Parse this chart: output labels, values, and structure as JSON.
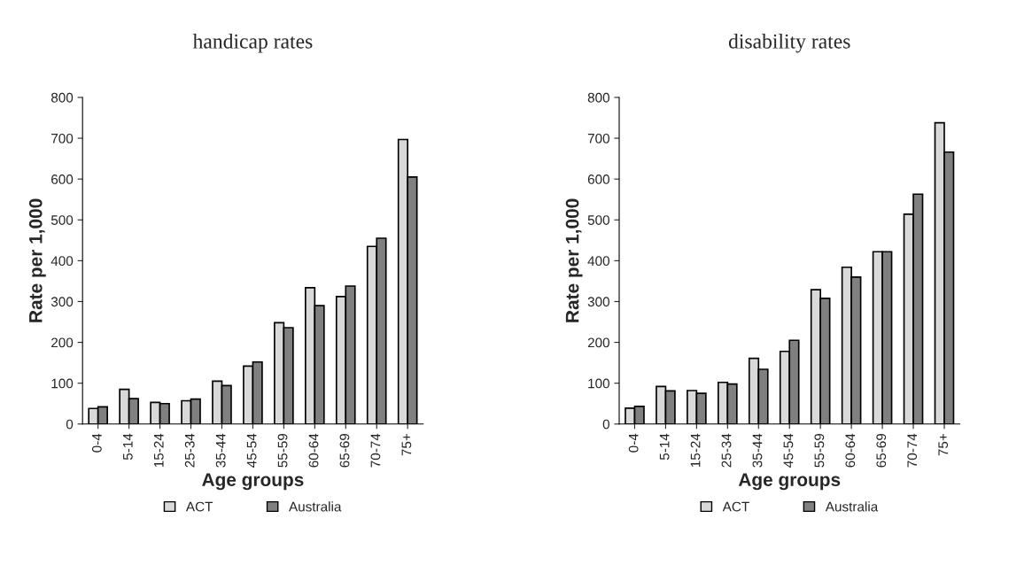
{
  "chart_data": [
    {
      "type": "bar",
      "title": "handicap rates",
      "xlabel": "Age groups",
      "ylabel": "Rate per 1,000",
      "categories": [
        "0-4",
        "5-14",
        "15-24",
        "25-34",
        "35-44",
        "45-54",
        "55-59",
        "60-64",
        "65-69",
        "70-74",
        "75+"
      ],
      "series": [
        {
          "name": "ACT",
          "color": "#d9d9d9",
          "values": [
            38,
            85,
            53,
            57,
            105,
            142,
            248,
            334,
            312,
            435,
            697
          ]
        },
        {
          "name": "Australia",
          "color": "#808080",
          "values": [
            42,
            62,
            50,
            61,
            94,
            152,
            236,
            290,
            338,
            455,
            605
          ]
        }
      ],
      "ylim": [
        0,
        800
      ],
      "yticks": [
        0,
        100,
        200,
        300,
        400,
        500,
        600,
        700,
        800
      ],
      "grid": false,
      "legend": "bottom"
    },
    {
      "type": "bar",
      "title": "disability rates",
      "xlabel": "Age groups",
      "ylabel": "Rate per 1,000",
      "categories": [
        "0-4",
        "5-14",
        "15-24",
        "25-34",
        "35-44",
        "45-54",
        "55-59",
        "60-64",
        "65-69",
        "70-74",
        "75+"
      ],
      "series": [
        {
          "name": "ACT",
          "color": "#d9d9d9",
          "values": [
            39,
            92,
            82,
            102,
            161,
            178,
            329,
            384,
            422,
            514,
            738
          ]
        },
        {
          "name": "Australia",
          "color": "#808080",
          "values": [
            43,
            81,
            75,
            98,
            134,
            205,
            308,
            360,
            422,
            563,
            666
          ]
        }
      ],
      "ylim": [
        0,
        800
      ],
      "yticks": [
        0,
        100,
        200,
        300,
        400,
        500,
        600,
        700,
        800
      ],
      "grid": false,
      "legend": "bottom"
    }
  ]
}
